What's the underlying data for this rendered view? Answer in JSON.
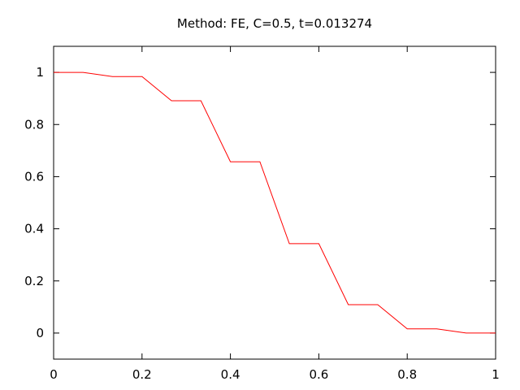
{
  "chart_data": {
    "type": "line",
    "title": "Method: FE, C=0.5, t=0.013274",
    "xlabel": "",
    "ylabel": "",
    "xlim": [
      0,
      1
    ],
    "ylim": [
      -0.1,
      1.1
    ],
    "x_ticks": [
      0,
      0.2,
      0.4,
      0.6,
      0.8,
      1
    ],
    "x_tick_labels": [
      "0",
      "0.2",
      "0.4",
      "0.6",
      "0.8",
      "1"
    ],
    "y_ticks": [
      0,
      0.2,
      0.4,
      0.6,
      0.8,
      1
    ],
    "y_tick_labels": [
      "0",
      "0.2",
      "0.4",
      "0.6",
      "0.8",
      "1"
    ],
    "grid": false,
    "series": [
      {
        "color": "#ff0000",
        "x": [
          0,
          0.0667,
          0.1333,
          0.2,
          0.2667,
          0.3333,
          0.4,
          0.4667,
          0.5333,
          0.6,
          0.6667,
          0.7333,
          0.8,
          0.8667,
          0.9333,
          1.0
        ],
        "y": [
          1.0,
          1.0,
          0.984,
          0.984,
          0.891,
          0.891,
          0.657,
          0.657,
          0.343,
          0.343,
          0.109,
          0.109,
          0.016,
          0.016,
          0.0,
          0.0
        ]
      }
    ]
  }
}
